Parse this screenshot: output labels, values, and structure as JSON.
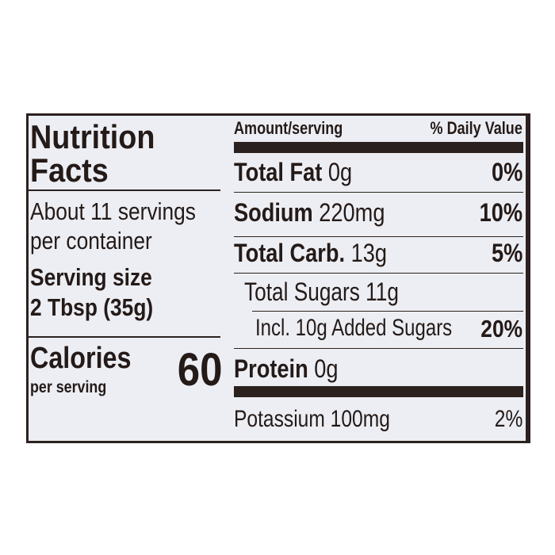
{
  "title_line1": "Nutrition",
  "title_line2": "Facts",
  "servings_line1": "About 11 servings",
  "servings_line2": "per container",
  "serving_size_label": "Serving size",
  "serving_size_value": "2 Tbsp (35g)",
  "calories_label": "Calories",
  "calories_sub": "per serving",
  "calories_value": "60",
  "header": {
    "amount": "Amount/serving",
    "dv": "% Daily Value"
  },
  "nutrients": [
    {
      "name": "Total Fat",
      "amount": "0g",
      "dv": "0%"
    },
    {
      "name": "Sodium",
      "amount": "220mg",
      "dv": "10%"
    },
    {
      "name": "Total Carb.",
      "amount": "13g",
      "dv": "5%"
    },
    {
      "name": "Total Sugars 11g",
      "amount": "",
      "dv": ""
    },
    {
      "name": "Incl. 10g Added Sugars",
      "amount": "",
      "dv": "20%"
    },
    {
      "name": "Protein",
      "amount": "0g",
      "dv": ""
    },
    {
      "name": "Potassium 100mg",
      "amount": "",
      "dv": "2%"
    }
  ],
  "colors": {
    "ink": "#2b211e",
    "panel": "#eceef3"
  }
}
